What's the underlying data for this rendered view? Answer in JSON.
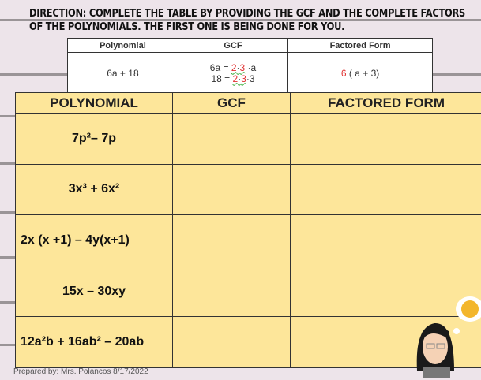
{
  "direction": "DIRECTION: COMPLETE THE TABLE BY PROVIDING THE GCF AND THE COMPLETE FACTORS OF THE POLYNOMIALS. THE FIRST ONE IS BEING DONE FOR YOU.",
  "example": {
    "headers": [
      "Polynomial",
      "GCF",
      "Factored Form"
    ],
    "polynomial": "6a + 18",
    "gcf_line1": {
      "pre": "6a = ",
      "a": "2",
      "sep": "·",
      "b": "3",
      "post": " ·a"
    },
    "gcf_line2": {
      "pre": "18 = ",
      "a": "2",
      "sep": "·",
      "b": "3",
      "post": "·3"
    },
    "factored": {
      "gcf": "6",
      "rest": " ( a + 3)"
    }
  },
  "main": {
    "headers": [
      "POLYNOMIAL",
      "GCF",
      "FACTORED FORM"
    ],
    "rows": [
      "7p²– 7p",
      "3x³ + 6x²",
      "2x (x +1) – 4y(x+1)",
      "15x – 30xy",
      "12a²b + 16ab² – 20ab"
    ]
  },
  "footer": "Prepared by: Mrs. Polancos 8/17/2022",
  "colors": {
    "background": "#ede4ea",
    "table_fill": "#fde69a",
    "accent_red": "#e03030"
  }
}
